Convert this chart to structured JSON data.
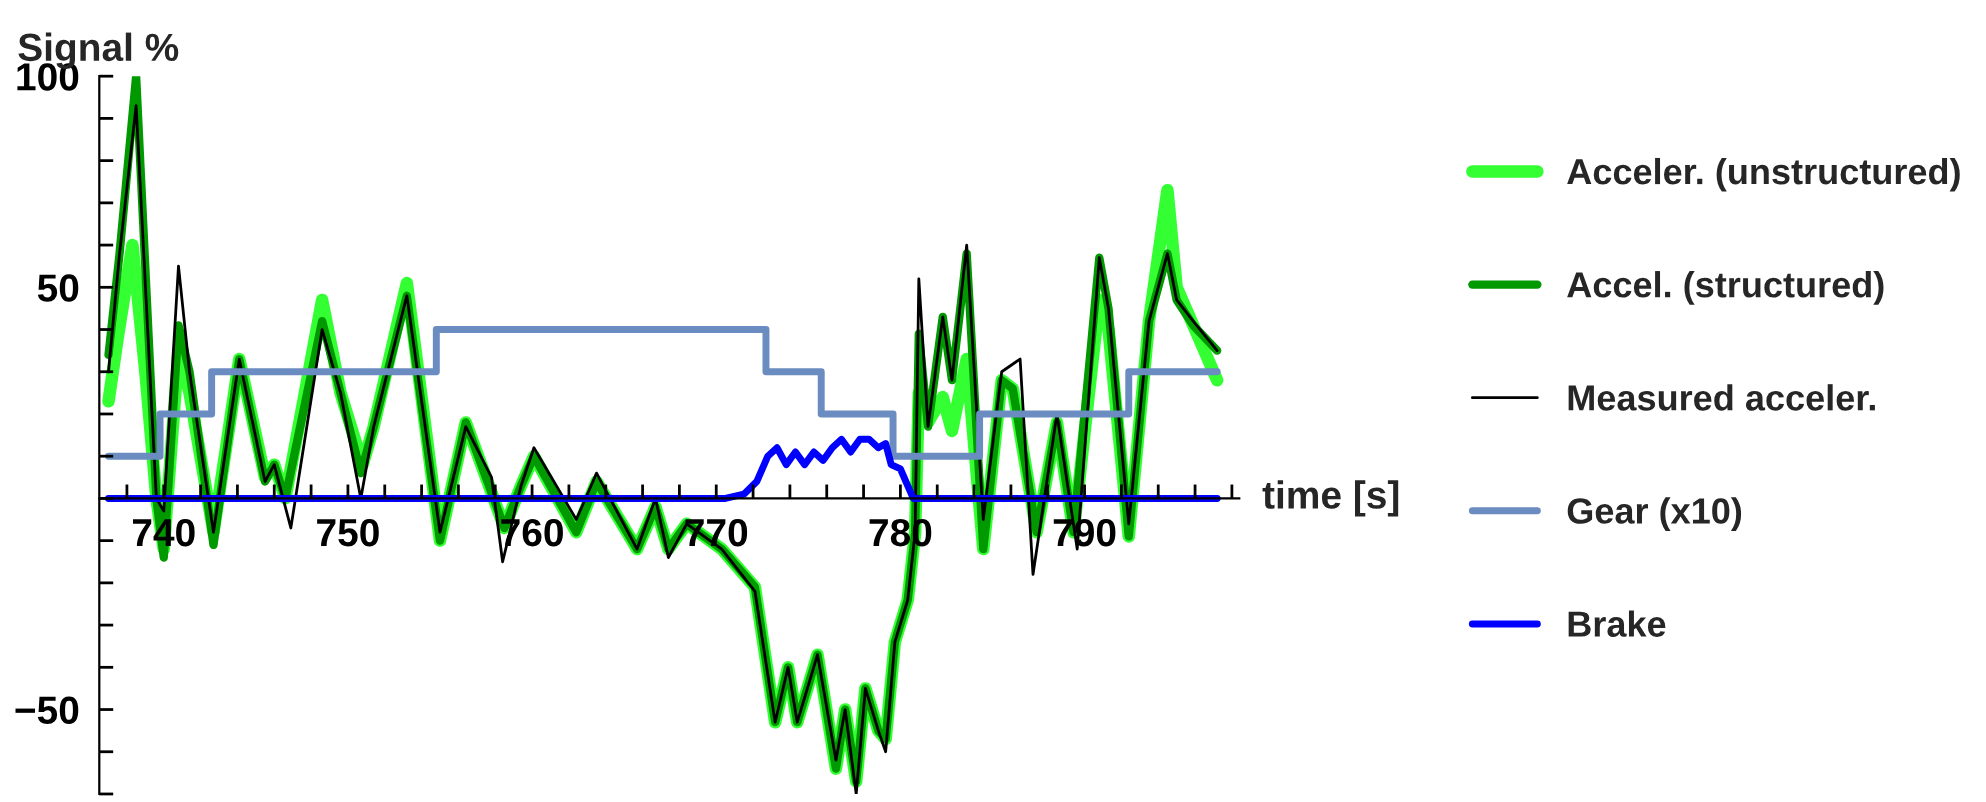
{
  "chart_data": {
    "type": "line",
    "xlabel": "time [s]",
    "ylabel": "Signal %",
    "xlim": [
      736.5,
      798.4
    ],
    "ylim": [
      -70,
      100
    ],
    "xticks": [
      {
        "value": 738,
        "label": null
      },
      740,
      {
        "value": 742,
        "label": null
      },
      {
        "value": 744,
        "label": null
      },
      {
        "value": 746,
        "label": null
      },
      {
        "value": 748,
        "label": null
      },
      750,
      {
        "value": 752,
        "label": null
      },
      {
        "value": 754,
        "label": null
      },
      {
        "value": 756,
        "label": null
      },
      {
        "value": 758,
        "label": null
      },
      760,
      {
        "value": 762,
        "label": null
      },
      {
        "value": 764,
        "label": null
      },
      {
        "value": 766,
        "label": null
      },
      {
        "value": 768,
        "label": null
      },
      770,
      {
        "value": 772,
        "label": null
      },
      {
        "value": 774,
        "label": null
      },
      {
        "value": 776,
        "label": null
      },
      {
        "value": 778,
        "label": null
      },
      780,
      {
        "value": 782,
        "label": null
      },
      {
        "value": 784,
        "label": null
      },
      {
        "value": 786,
        "label": null
      },
      {
        "value": 788,
        "label": null
      },
      790,
      {
        "value": 792,
        "label": null
      },
      {
        "value": 794,
        "label": null
      },
      {
        "value": 796,
        "label": null
      },
      {
        "value": 798,
        "label": null
      }
    ],
    "yticks": [
      {
        "value": -70,
        "label": null
      },
      {
        "value": -60,
        "label": null
      },
      {
        "value": -50,
        "label": "−50"
      },
      {
        "value": -40,
        "label": null
      },
      {
        "value": -30,
        "label": null
      },
      {
        "value": -20,
        "label": null
      },
      {
        "value": -10,
        "label": null
      },
      {
        "value": 0,
        "label": null
      },
      {
        "value": 10,
        "label": null
      },
      {
        "value": 20,
        "label": null
      },
      {
        "value": 30,
        "label": null
      },
      {
        "value": 40,
        "label": null
      },
      50,
      {
        "value": 60,
        "label": null
      },
      {
        "value": 70,
        "label": null
      },
      {
        "value": 80,
        "label": null
      },
      {
        "value": 90,
        "label": null
      },
      100
    ],
    "grid": false,
    "legend": "right",
    "series": [
      {
        "name": "Acceler. (unstructured)",
        "color": "#33ff33",
        "x": [
          737,
          737.5,
          738.3,
          739,
          739.6,
          740,
          740.8,
          741.4,
          742.7,
          744.1,
          745.5,
          746,
          746.6,
          748.6,
          749.6,
          750.8,
          751.4,
          753.2,
          755,
          756.4,
          758.5,
          759.4,
          760.1,
          762.4,
          763.5,
          765.7,
          766.7,
          767.4,
          768.4,
          770.3,
          772.1,
          773.2,
          773.9,
          774.4,
          775.5,
          776.5,
          777,
          777.6,
          778.1,
          778.8,
          779.2,
          779.7,
          780.4,
          780.8,
          781,
          781.5,
          782.3,
          782.8,
          783.6,
          784.5,
          785.5,
          786.1,
          787.4,
          788.5,
          789.4,
          790.8,
          791.3,
          792.4,
          793.5,
          794.5,
          795,
          795.9,
          797.2
        ],
        "values": [
          23,
          38,
          60,
          30,
          0,
          -12,
          35,
          25,
          -8,
          33,
          5,
          8,
          0,
          47,
          25,
          8,
          17,
          51,
          -10,
          18,
          -7,
          3,
          10,
          -8,
          4,
          -12,
          -2,
          -12,
          -6,
          -12,
          -21,
          -53,
          -40,
          -53,
          -37,
          -64,
          -50,
          -67,
          -45,
          -55,
          -57,
          -34,
          -24,
          -8,
          25,
          18,
          24,
          16,
          33,
          -12,
          28,
          26,
          -8,
          18,
          -8,
          47,
          40,
          -9,
          42,
          73,
          50,
          41,
          28
        ]
      },
      {
        "name": "Accel. (structured)",
        "color": "#009900",
        "x": [
          737,
          737.6,
          738.5,
          739.6,
          740,
          740.8,
          741.4,
          742.7,
          744.1,
          745.5,
          746,
          746.6,
          748.6,
          749.6,
          750.7,
          751.4,
          753.2,
          755,
          756.4,
          758.5,
          759.4,
          760.1,
          762.4,
          763.5,
          765.7,
          766.7,
          767.4,
          768.4,
          770.3,
          772.1,
          773.2,
          773.9,
          774.4,
          775.5,
          776.5,
          777,
          777.6,
          778.1,
          778.8,
          779.2,
          779.7,
          780.4,
          780.8,
          781,
          781.5,
          782.3,
          782.8,
          783.6,
          784.5,
          785.5,
          786.1,
          787.4,
          788.5,
          789.4,
          790.8,
          791.3,
          792.4,
          793.5,
          794.5,
          795,
          795.9,
          797.2
        ],
        "values": [
          34,
          58,
          100,
          0,
          -14,
          41,
          30,
          -11,
          33,
          4,
          8,
          0,
          42,
          25,
          6,
          17,
          48,
          -10,
          18,
          -7,
          3,
          10,
          -8,
          4,
          -12,
          -2,
          -12,
          -6,
          -12,
          -21,
          -53,
          -40,
          -53,
          -37,
          -64,
          -50,
          -67,
          -45,
          -55,
          -57,
          -34,
          -24,
          -8,
          39,
          17,
          43,
          28,
          58,
          -12,
          28,
          26,
          -8,
          18,
          -8,
          57,
          45,
          -9,
          42,
          58,
          47,
          41,
          35
        ]
      },
      {
        "name": "Measured acceler.",
        "color": "#000000",
        "x": [
          737,
          737.6,
          738.5,
          739.6,
          740,
          740.8,
          741.4,
          742.7,
          744.1,
          745.5,
          746,
          746.9,
          748.6,
          749.6,
          750.7,
          751.4,
          753.2,
          755,
          756.4,
          757.8,
          758.4,
          759.4,
          760.1,
          762.4,
          763.5,
          765.7,
          766.7,
          767.4,
          768.4,
          770.3,
          772.1,
          773.2,
          773.9,
          774.4,
          775.5,
          776.5,
          777,
          777.6,
          778.1,
          778.8,
          779.2,
          779.7,
          780.4,
          780.8,
          781,
          781.5,
          782.3,
          782.8,
          783.6,
          784.5,
          785.5,
          786.5,
          787.2,
          788.5,
          789.6,
          790.8,
          791.3,
          792.4,
          793.5,
          794.5,
          795,
          795.9,
          797.2
        ],
        "values": [
          30,
          58,
          93,
          0,
          -3,
          55,
          30,
          -8,
          33,
          4,
          8,
          -7,
          40,
          25,
          0,
          17,
          48,
          -8,
          17,
          5,
          -15,
          3,
          12,
          -5,
          6,
          -12,
          0,
          -14,
          -6,
          -12,
          -22,
          -53,
          -40,
          -53,
          -37,
          -62,
          -50,
          -70,
          -45,
          -55,
          -60,
          -34,
          -24,
          -8,
          52,
          17,
          43,
          28,
          60,
          -5,
          30,
          33,
          -18,
          20,
          -12,
          57,
          45,
          -6,
          42,
          58,
          47,
          42,
          35
        ]
      },
      {
        "name": "Gear (x10)",
        "color": "#6b8cc0",
        "type": "step",
        "x": [
          737,
          739.8,
          742.6,
          754.8,
          772.7,
          775.7,
          779.6,
          784.3,
          792.4,
          797.2
        ],
        "values": [
          10,
          20,
          30,
          40,
          30,
          20,
          10,
          20,
          30,
          30
        ]
      },
      {
        "name": "Brake",
        "color": "#0000ff",
        "x": [
          737,
          770.5,
          771.5,
          772.2,
          772.8,
          773.3,
          773.8,
          774.3,
          774.8,
          775.3,
          775.8,
          776.3,
          776.8,
          777.3,
          777.8,
          778.3,
          778.8,
          779.2,
          779.5,
          780,
          780.3,
          780.7,
          797.2
        ],
        "values": [
          0,
          0,
          1,
          4,
          10,
          12,
          8,
          11,
          8,
          11,
          9,
          12,
          14,
          11,
          14,
          14,
          12,
          13,
          8,
          7,
          4,
          0,
          0
        ]
      }
    ]
  }
}
